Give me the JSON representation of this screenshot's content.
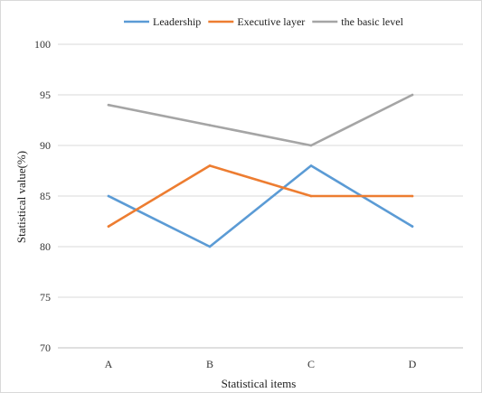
{
  "chart_data": {
    "type": "line",
    "categories": [
      "A",
      "B",
      "C",
      "D"
    ],
    "series": [
      {
        "name": "Leadership",
        "color": "#5B9BD5",
        "values": [
          85,
          80,
          88,
          82
        ]
      },
      {
        "name": "Executive layer",
        "color": "#ED7D31",
        "values": [
          82,
          88,
          85,
          85
        ]
      },
      {
        "name": "the basic level",
        "color": "#A5A5A5",
        "values": [
          94,
          92,
          90,
          95
        ]
      }
    ],
    "xlabel": "Statistical items",
    "ylabel": "Statistical value(%)",
    "ylim": [
      70,
      100
    ],
    "yticks": [
      70,
      75,
      80,
      85,
      90,
      95,
      100
    ],
    "grid": "horizontal",
    "legend_position": "top"
  }
}
